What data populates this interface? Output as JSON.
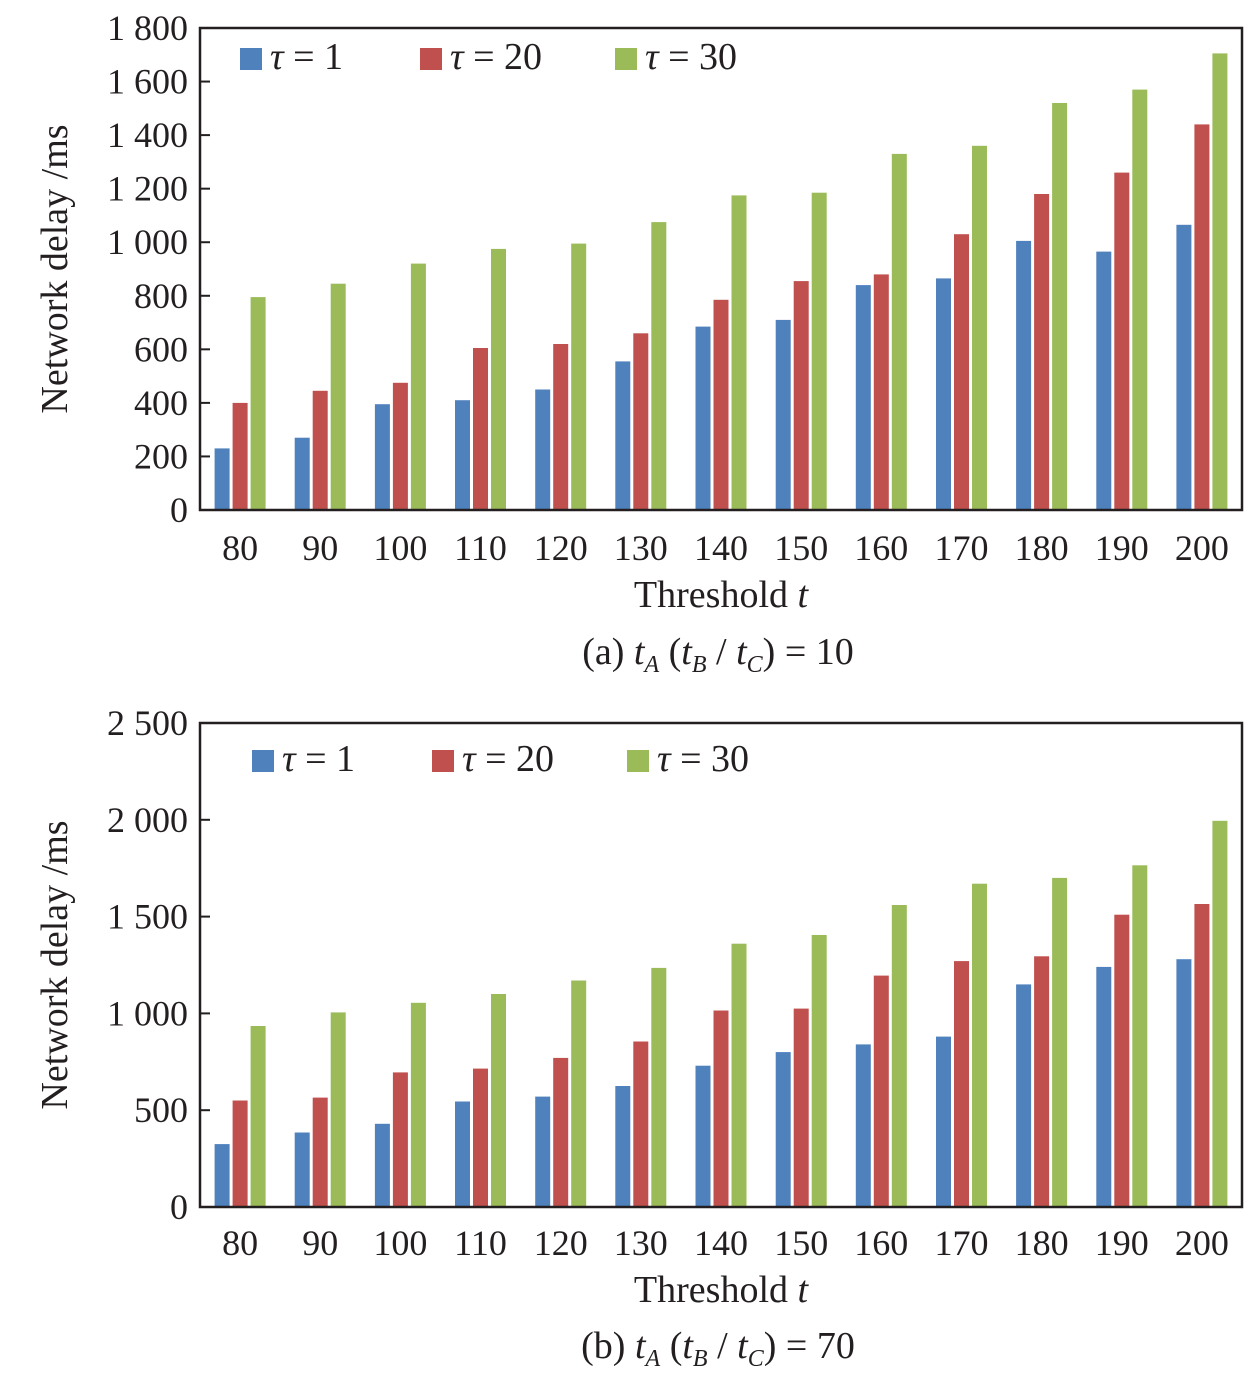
{
  "chart_data": [
    {
      "type": "bar",
      "caption": {
        "prefix": "(a) ",
        "t": "t",
        "a": "A",
        "b": "B",
        "c": "C",
        "rhs": "10"
      },
      "xlabel": {
        "text": "Threshold ",
        "var": "t"
      },
      "ylabel": "Network delay /ms",
      "categories": [
        "80",
        "90",
        "100",
        "110",
        "120",
        "130",
        "140",
        "150",
        "160",
        "170",
        "180",
        "190",
        "200"
      ],
      "ylim": [
        0,
        1800
      ],
      "yticks": [
        0,
        200,
        400,
        600,
        800,
        1000,
        1200,
        1400,
        1600,
        1800
      ],
      "ytick_labels": [
        "0",
        "200",
        "400",
        "600",
        "800",
        "1 000",
        "1 200",
        "1 400",
        "1 600",
        "1 800"
      ],
      "legend_position": "top-left",
      "series": [
        {
          "name": "τ = 1",
          "sym": "τ",
          "rest": " = 1",
          "color": "#4f81bd",
          "values": [
            230,
            270,
            395,
            410,
            450,
            555,
            685,
            710,
            840,
            865,
            1005,
            965,
            1065
          ]
        },
        {
          "name": "τ = 20",
          "sym": "τ",
          "rest": " = 20",
          "color": "#c0504d",
          "values": [
            400,
            445,
            475,
            605,
            620,
            660,
            785,
            855,
            880,
            1030,
            1180,
            1260,
            1440
          ]
        },
        {
          "name": "τ = 30",
          "sym": "τ",
          "rest": " = 30",
          "color": "#9bbb59",
          "values": [
            795,
            845,
            920,
            975,
            995,
            1075,
            1175,
            1185,
            1330,
            1360,
            1520,
            1570,
            1705
          ]
        }
      ]
    },
    {
      "type": "bar",
      "caption": {
        "prefix": "(b) ",
        "t": "t",
        "a": "A",
        "b": "B",
        "c": "C",
        "rhs": "70"
      },
      "xlabel": {
        "text": "Threshold ",
        "var": "t"
      },
      "ylabel": "Network delay /ms",
      "categories": [
        "80",
        "90",
        "100",
        "110",
        "120",
        "130",
        "140",
        "150",
        "160",
        "170",
        "180",
        "190",
        "200"
      ],
      "ylim": [
        0,
        2500
      ],
      "yticks": [
        0,
        500,
        1000,
        1500,
        2000,
        2500
      ],
      "ytick_labels": [
        "0",
        "500",
        "1 000",
        "1 500",
        "2 000",
        "2 500"
      ],
      "legend_position": "top-left",
      "series": [
        {
          "name": "τ = 1",
          "sym": "τ",
          "rest": " = 1",
          "color": "#4f81bd",
          "values": [
            325,
            385,
            430,
            545,
            570,
            625,
            730,
            800,
            840,
            880,
            1150,
            1240,
            1280
          ]
        },
        {
          "name": "τ = 20",
          "sym": "τ",
          "rest": " = 20",
          "color": "#c0504d",
          "values": [
            550,
            565,
            695,
            715,
            770,
            855,
            1015,
            1025,
            1195,
            1270,
            1295,
            1510,
            1565
          ]
        },
        {
          "name": "τ = 30",
          "sym": "τ",
          "rest": " = 30",
          "color": "#9bbb59",
          "values": [
            935,
            1005,
            1055,
            1100,
            1170,
            1235,
            1360,
            1405,
            1560,
            1670,
            1700,
            1765,
            1995
          ]
        }
      ]
    }
  ]
}
